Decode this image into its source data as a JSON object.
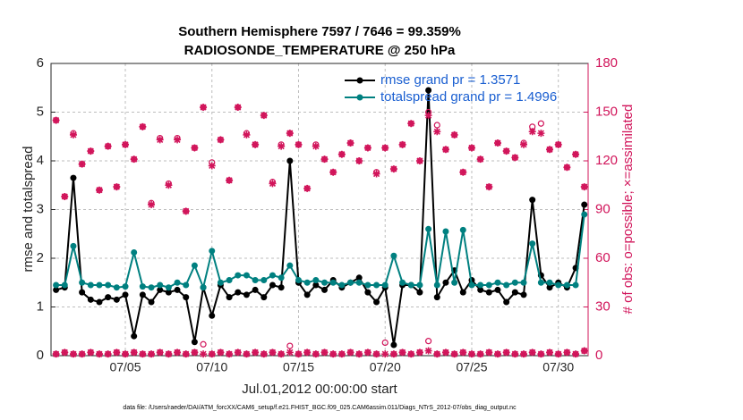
{
  "chart_data": {
    "type": "line",
    "title": "Southern Hemisphere 7597 / 7646 = 99.359%",
    "subtitle": "RADIOSONDE_TEMPERATURE @ 250 hPa",
    "x_label": "Jul.01,2012 00:00:00 start",
    "y_label": "rmse and totalspread",
    "y2_label": "# of obs: o=possible; ×=assimilated",
    "footnote": "data file: /Users/raeder/DAI/ATM_forcXX/CAM6_setup/f.e21.FHIST_BGC.f09_025.CAM6assim.011/Diags_NTrS_2012-07/obs_diag_output.nc",
    "x": [
      0,
      0.5,
      1,
      1.5,
      2,
      2.5,
      3,
      3.5,
      4,
      4.5,
      5,
      5.5,
      6,
      6.5,
      7,
      7.5,
      8,
      8.5,
      9,
      9.5,
      10,
      10.5,
      11,
      11.5,
      12,
      12.5,
      13,
      13.5,
      14,
      14.5,
      15,
      15.5,
      16,
      16.5,
      17,
      17.5,
      18,
      18.5,
      19,
      19.5,
      20,
      20.5,
      21,
      21.5,
      22,
      22.5,
      23,
      23.5,
      24,
      24.5,
      25,
      25.5,
      26,
      26.5,
      27,
      27.5,
      28,
      28.5,
      29,
      29.5,
      30,
      30.5
    ],
    "xlim": [
      -0.29,
      30.72
    ],
    "xticks": [
      {
        "value": 4,
        "label": "07/05"
      },
      {
        "value": 9,
        "label": "07/10"
      },
      {
        "value": 14,
        "label": "07/15"
      },
      {
        "value": 19,
        "label": "07/20"
      },
      {
        "value": 24,
        "label": "07/25"
      },
      {
        "value": 29,
        "label": "07/30"
      }
    ],
    "ylim": [
      0,
      6
    ],
    "yticks": [
      0,
      1,
      2,
      3,
      4,
      5,
      6
    ],
    "y2lim": [
      0,
      180
    ],
    "y2ticks": [
      0,
      30,
      60,
      90,
      120,
      150,
      180
    ],
    "grid": true,
    "legend": "upper right",
    "series": [
      {
        "name": "rmse grand pr = 1.3571",
        "color": "#000000",
        "values": [
          1.35,
          1.4,
          3.65,
          1.3,
          1.15,
          1.1,
          1.2,
          1.15,
          1.25,
          0.4,
          1.25,
          1.1,
          1.35,
          1.3,
          1.35,
          1.2,
          0.28,
          1.4,
          0.82,
          1.45,
          1.2,
          1.3,
          1.25,
          1.35,
          1.2,
          1.45,
          1.4,
          4.0,
          1.5,
          1.25,
          1.45,
          1.35,
          1.55,
          1.4,
          1.5,
          1.6,
          1.3,
          1.1,
          1.4,
          0.22,
          1.45,
          1.45,
          1.3,
          5.45,
          1.2,
          1.5,
          1.75,
          1.3,
          1.55,
          1.35,
          1.3,
          1.35,
          1.1,
          1.3,
          1.25,
          3.2,
          1.65,
          1.4,
          1.5,
          1.4,
          1.8,
          3.1
        ]
      },
      {
        "name": "totalspread grand pr = 1.4996",
        "color": "#008080",
        "values": [
          1.45,
          1.45,
          2.25,
          1.5,
          1.45,
          1.45,
          1.45,
          1.4,
          1.42,
          2.12,
          1.42,
          1.4,
          1.45,
          1.4,
          1.5,
          1.45,
          1.85,
          1.4,
          2.15,
          1.5,
          1.55,
          1.65,
          1.65,
          1.55,
          1.55,
          1.65,
          1.6,
          1.85,
          1.55,
          1.5,
          1.55,
          1.5,
          1.5,
          1.45,
          1.5,
          1.5,
          1.45,
          1.45,
          1.45,
          2.05,
          1.5,
          1.45,
          1.45,
          2.6,
          1.45,
          2.55,
          1.5,
          2.58,
          1.45,
          1.45,
          1.45,
          1.5,
          1.45,
          1.5,
          1.5,
          2.3,
          1.5,
          1.5,
          1.45,
          1.45,
          1.45,
          2.9
        ]
      },
      {
        "color": "#d1145a",
        "axis": "y2",
        "marker": "o",
        "values": [
          145,
          98,
          137,
          118,
          126,
          102,
          129,
          104,
          130,
          121,
          141,
          94,
          134,
          106,
          134,
          89,
          128,
          153,
          119,
          133,
          108,
          153,
          137,
          130,
          148,
          107,
          130,
          137,
          130,
          103,
          130,
          121,
          113,
          124,
          131,
          120,
          128,
          113,
          128,
          115,
          130,
          143,
          120,
          150,
          142,
          127,
          136,
          113,
          128,
          121,
          104,
          131,
          126,
          122,
          131,
          141,
          143,
          127,
          130,
          116,
          124,
          104
        ]
      },
      {
        "color": "#d1145a",
        "axis": "y2",
        "marker": "*",
        "values": [
          145,
          98,
          136,
          118,
          126,
          102,
          129,
          104,
          130,
          121,
          141,
          93,
          133,
          105,
          133,
          89,
          128,
          153,
          117,
          133,
          108,
          153,
          136,
          130,
          148,
          106,
          129,
          137,
          130,
          103,
          129,
          121,
          113,
          124,
          131,
          120,
          128,
          112,
          128,
          115,
          130,
          143,
          120,
          148,
          138,
          127,
          136,
          113,
          128,
          121,
          104,
          131,
          126,
          122,
          130,
          138,
          137,
          127,
          130,
          116,
          124,
          104
        ]
      },
      {
        "color": "#d1145a",
        "axis": "y2",
        "marker": "o",
        "values": [
          1,
          2,
          1,
          1,
          2,
          1,
          1,
          2,
          1,
          2,
          1,
          1,
          2,
          1,
          2,
          1,
          2,
          7,
          1,
          2,
          1,
          2,
          1,
          2,
          1,
          2,
          1,
          6,
          1,
          2,
          1,
          2,
          1,
          1,
          2,
          1,
          2,
          1,
          8,
          1,
          2,
          1,
          2,
          9,
          1,
          2,
          1,
          2,
          1,
          1,
          2,
          1,
          2,
          1,
          1,
          2,
          1,
          2,
          1,
          2,
          1,
          3
        ]
      },
      {
        "color": "#d1145a",
        "axis": "y2",
        "marker": "*",
        "values": [
          1,
          2,
          1,
          1,
          2,
          1,
          1,
          2,
          1,
          2,
          1,
          1,
          2,
          1,
          2,
          1,
          2,
          1,
          1,
          2,
          1,
          2,
          1,
          2,
          1,
          2,
          1,
          2,
          1,
          2,
          1,
          2,
          1,
          1,
          2,
          1,
          2,
          1,
          1,
          1,
          2,
          1,
          2,
          3,
          1,
          2,
          1,
          2,
          1,
          1,
          2,
          1,
          2,
          1,
          1,
          2,
          1,
          2,
          1,
          2,
          1,
          3
        ]
      }
    ]
  }
}
